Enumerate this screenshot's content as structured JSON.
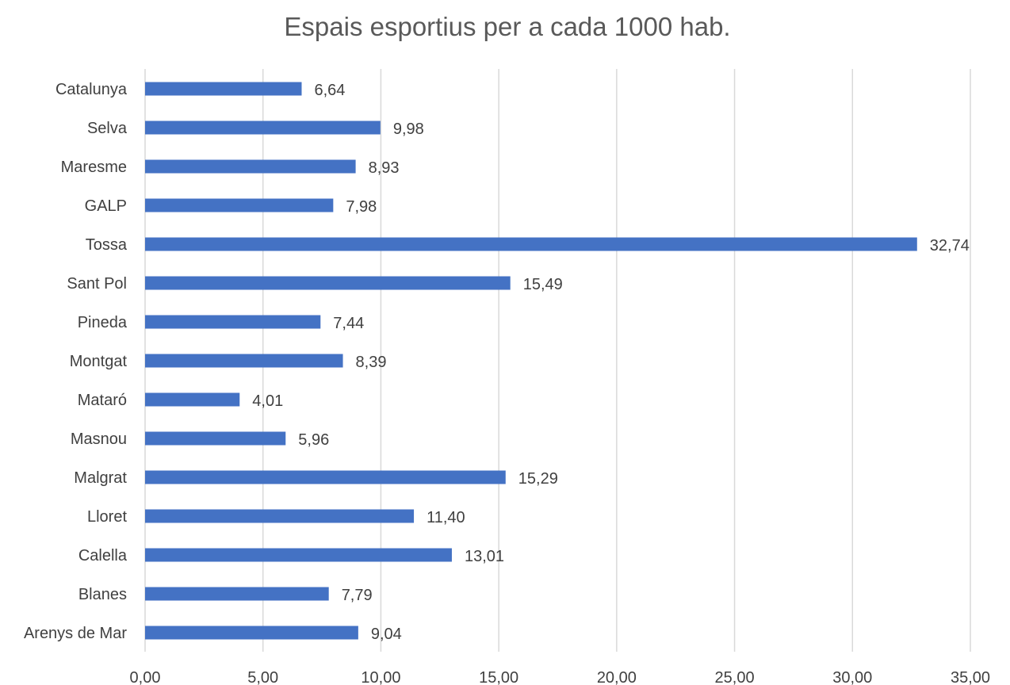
{
  "chart_data": {
    "type": "bar",
    "orientation": "horizontal",
    "title": "Espais esportius per a cada 1000 hab.",
    "xlabel": "",
    "ylabel": "",
    "xlim": [
      0,
      35
    ],
    "x_ticks": [
      "0,00",
      "5,00",
      "10,00",
      "15,00",
      "20,00",
      "25,00",
      "30,00",
      "35,00"
    ],
    "x_tick_values": [
      0,
      5,
      10,
      15,
      20,
      25,
      30,
      35
    ],
    "grid": "vertical",
    "legend": "none",
    "categories": [
      "Catalunya",
      "Selva",
      "Maresme",
      "GALP",
      "Tossa",
      "Sant Pol",
      "Pineda",
      "Montgat",
      "Mataró",
      "Masnou",
      "Malgrat",
      "Lloret",
      "Calella",
      "Blanes",
      "Arenys de Mar"
    ],
    "values": [
      6.64,
      9.98,
      8.93,
      7.98,
      32.74,
      15.49,
      7.44,
      8.39,
      4.01,
      5.96,
      15.29,
      11.4,
      13.01,
      7.79,
      9.04
    ],
    "value_labels": [
      "6,64",
      "9,98",
      "8,93",
      "7,98",
      "32,74",
      "15,49",
      "7,44",
      "8,39",
      "4,01",
      "5,96",
      "15,29",
      "11,40",
      "13,01",
      "7,79",
      "9,04"
    ],
    "colors": {
      "bar": "#4472c4",
      "grid": "#d9d9d9",
      "text": "#404040",
      "title": "#595959"
    }
  }
}
